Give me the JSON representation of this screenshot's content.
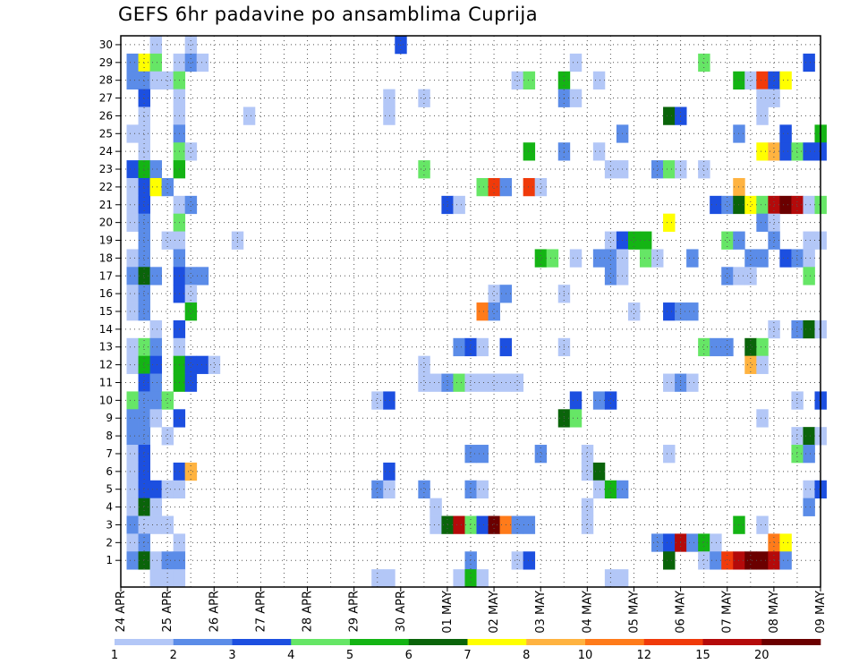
{
  "chart_data": {
    "type": "heatmap",
    "title": "GEFS 6hr padavine po ansamblima Cuprija",
    "xlabel": "",
    "ylabel": "",
    "y_members": [
      1,
      2,
      3,
      4,
      5,
      6,
      7,
      8,
      9,
      10,
      11,
      12,
      13,
      14,
      15,
      16,
      17,
      18,
      19,
      20,
      21,
      22,
      23,
      24,
      25,
      26,
      27,
      28,
      29,
      30
    ],
    "x_tick_labels": [
      "24 APR",
      "25 APR",
      "26 APR",
      "27 APR",
      "28 APR",
      "29 APR",
      "30 APR",
      "01 MAY",
      "02 MAY",
      "03 MAY",
      "04 MAY",
      "05 MAY",
      "06 MAY",
      "07 MAY",
      "08 MAY",
      "09 MAY"
    ],
    "time_steps": 61,
    "steps_per_day": 4,
    "grid": true,
    "colorbar": {
      "position": "bottom",
      "tick_labels": [
        "1",
        "2",
        "3",
        "4",
        "5",
        "6",
        "7",
        "8",
        "10",
        "12",
        "15",
        "20"
      ],
      "bins": [
        {
          "min": 1,
          "max": 2,
          "color": "#b3c7f7"
        },
        {
          "min": 2,
          "max": 3,
          "color": "#5b8ce8"
        },
        {
          "min": 3,
          "max": 4,
          "color": "#1c4fe0"
        },
        {
          "min": 4,
          "max": 5,
          "color": "#66e666"
        },
        {
          "min": 5,
          "max": 6,
          "color": "#14b414"
        },
        {
          "min": 6,
          "max": 7,
          "color": "#0a640a"
        },
        {
          "min": 7,
          "max": 8,
          "color": "#ffff00"
        },
        {
          "min": 8,
          "max": 10,
          "color": "#ffb340"
        },
        {
          "min": 10,
          "max": 12,
          "color": "#ff7b1a"
        },
        {
          "min": 12,
          "max": 15,
          "color": "#f03a0a"
        },
        {
          "min": 15,
          "max": 20,
          "color": "#b40a0a"
        },
        {
          "min": 20,
          "max": 30,
          "color": "#6b0000"
        }
      ]
    },
    "cells_format": "[member, step_index_from_24APR00Z, bin_index]",
    "cells": [
      [
        30,
        3,
        0
      ],
      [
        30,
        6,
        0
      ],
      [
        30,
        24,
        2
      ],
      [
        29,
        1,
        1
      ],
      [
        29,
        2,
        6
      ],
      [
        29,
        3,
        3
      ],
      [
        29,
        5,
        0
      ],
      [
        29,
        6,
        1
      ],
      [
        29,
        7,
        0
      ],
      [
        29,
        39,
        0
      ],
      [
        29,
        50,
        3
      ],
      [
        29,
        59,
        2
      ],
      [
        28,
        1,
        1
      ],
      [
        28,
        2,
        1
      ],
      [
        28,
        3,
        0
      ],
      [
        28,
        4,
        0
      ],
      [
        28,
        5,
        3
      ],
      [
        28,
        34,
        0
      ],
      [
        28,
        35,
        3
      ],
      [
        28,
        38,
        4
      ],
      [
        28,
        41,
        0
      ],
      [
        28,
        53,
        4
      ],
      [
        28,
        54,
        0
      ],
      [
        28,
        55,
        9
      ],
      [
        28,
        56,
        2
      ],
      [
        28,
        57,
        6
      ],
      [
        27,
        2,
        2
      ],
      [
        27,
        5,
        0
      ],
      [
        27,
        23,
        0
      ],
      [
        27,
        26,
        0
      ],
      [
        27,
        38,
        1
      ],
      [
        27,
        39,
        0
      ],
      [
        27,
        55,
        0
      ],
      [
        27,
        56,
        0
      ],
      [
        26,
        2,
        0
      ],
      [
        26,
        5,
        0
      ],
      [
        26,
        11,
        0
      ],
      [
        26,
        23,
        0
      ],
      [
        26,
        47,
        5
      ],
      [
        26,
        48,
        2
      ],
      [
        26,
        55,
        0
      ],
      [
        25,
        1,
        0
      ],
      [
        25,
        2,
        0
      ],
      [
        25,
        5,
        1
      ],
      [
        25,
        43,
        1
      ],
      [
        25,
        53,
        1
      ],
      [
        25,
        57,
        2
      ],
      [
        25,
        60,
        4
      ],
      [
        24,
        2,
        0
      ],
      [
        24,
        5,
        3
      ],
      [
        24,
        6,
        0
      ],
      [
        24,
        35,
        4
      ],
      [
        24,
        38,
        1
      ],
      [
        24,
        41,
        0
      ],
      [
        24,
        55,
        6
      ],
      [
        24,
        56,
        7
      ],
      [
        24,
        57,
        2
      ],
      [
        24,
        58,
        3
      ],
      [
        24,
        59,
        2
      ],
      [
        24,
        60,
        2
      ],
      [
        23,
        1,
        2
      ],
      [
        23,
        2,
        4
      ],
      [
        23,
        3,
        1
      ],
      [
        23,
        5,
        4
      ],
      [
        23,
        26,
        3
      ],
      [
        23,
        42,
        0
      ],
      [
        23,
        43,
        0
      ],
      [
        23,
        46,
        1
      ],
      [
        23,
        47,
        3
      ],
      [
        23,
        48,
        0
      ],
      [
        23,
        50,
        0
      ],
      [
        22,
        1,
        0
      ],
      [
        22,
        2,
        2
      ],
      [
        22,
        3,
        6
      ],
      [
        22,
        4,
        1
      ],
      [
        22,
        31,
        3
      ],
      [
        22,
        32,
        9
      ],
      [
        22,
        33,
        1
      ],
      [
        22,
        35,
        9
      ],
      [
        22,
        36,
        0
      ],
      [
        22,
        53,
        7
      ],
      [
        21,
        1,
        0
      ],
      [
        21,
        2,
        2
      ],
      [
        21,
        5,
        0
      ],
      [
        21,
        6,
        1
      ],
      [
        21,
        28,
        2
      ],
      [
        21,
        29,
        0
      ],
      [
        21,
        51,
        2
      ],
      [
        21,
        52,
        1
      ],
      [
        21,
        53,
        5
      ],
      [
        21,
        54,
        6
      ],
      [
        21,
        55,
        3
      ],
      [
        21,
        56,
        10
      ],
      [
        21,
        57,
        11
      ],
      [
        21,
        58,
        10
      ],
      [
        21,
        59,
        0
      ],
      [
        21,
        60,
        3
      ],
      [
        20,
        1,
        0
      ],
      [
        20,
        2,
        1
      ],
      [
        20,
        5,
        3
      ],
      [
        20,
        47,
        6
      ],
      [
        20,
        55,
        1
      ],
      [
        20,
        56,
        0
      ],
      [
        19,
        2,
        1
      ],
      [
        19,
        4,
        0
      ],
      [
        19,
        5,
        0
      ],
      [
        19,
        10,
        0
      ],
      [
        19,
        42,
        0
      ],
      [
        19,
        43,
        2
      ],
      [
        19,
        44,
        4
      ],
      [
        19,
        45,
        4
      ],
      [
        19,
        52,
        3
      ],
      [
        19,
        53,
        1
      ],
      [
        19,
        56,
        1
      ],
      [
        19,
        59,
        0
      ],
      [
        19,
        60,
        0
      ],
      [
        18,
        1,
        0
      ],
      [
        18,
        2,
        1
      ],
      [
        18,
        5,
        1
      ],
      [
        18,
        36,
        4
      ],
      [
        18,
        37,
        3
      ],
      [
        18,
        39,
        0
      ],
      [
        18,
        41,
        1
      ],
      [
        18,
        42,
        1
      ],
      [
        18,
        43,
        0
      ],
      [
        18,
        45,
        3
      ],
      [
        18,
        46,
        0
      ],
      [
        18,
        49,
        1
      ],
      [
        18,
        54,
        1
      ],
      [
        18,
        55,
        1
      ],
      [
        18,
        57,
        2
      ],
      [
        18,
        58,
        1
      ],
      [
        18,
        59,
        0
      ],
      [
        17,
        1,
        1
      ],
      [
        17,
        2,
        5
      ],
      [
        17,
        3,
        1
      ],
      [
        17,
        5,
        2
      ],
      [
        17,
        6,
        1
      ],
      [
        17,
        7,
        1
      ],
      [
        17,
        42,
        1
      ],
      [
        17,
        43,
        0
      ],
      [
        17,
        52,
        1
      ],
      [
        17,
        53,
        0
      ],
      [
        17,
        54,
        0
      ],
      [
        17,
        59,
        3
      ],
      [
        16,
        1,
        0
      ],
      [
        16,
        2,
        1
      ],
      [
        16,
        5,
        2
      ],
      [
        16,
        6,
        0
      ],
      [
        16,
        32,
        0
      ],
      [
        16,
        33,
        1
      ],
      [
        16,
        38,
        0
      ],
      [
        15,
        1,
        0
      ],
      [
        15,
        2,
        1
      ],
      [
        15,
        6,
        4
      ],
      [
        15,
        31,
        8
      ],
      [
        15,
        32,
        1
      ],
      [
        15,
        44,
        0
      ],
      [
        15,
        47,
        2
      ],
      [
        15,
        48,
        1
      ],
      [
        15,
        49,
        1
      ],
      [
        14,
        3,
        0
      ],
      [
        14,
        5,
        2
      ],
      [
        14,
        56,
        0
      ],
      [
        14,
        58,
        1
      ],
      [
        14,
        59,
        5
      ],
      [
        14,
        60,
        0
      ],
      [
        13,
        1,
        0
      ],
      [
        13,
        2,
        3
      ],
      [
        13,
        3,
        1
      ],
      [
        13,
        5,
        0
      ],
      [
        13,
        29,
        1
      ],
      [
        13,
        30,
        2
      ],
      [
        13,
        31,
        0
      ],
      [
        13,
        33,
        2
      ],
      [
        13,
        38,
        0
      ],
      [
        13,
        50,
        3
      ],
      [
        13,
        51,
        1
      ],
      [
        13,
        52,
        1
      ],
      [
        13,
        54,
        5
      ],
      [
        13,
        55,
        3
      ],
      [
        12,
        1,
        0
      ],
      [
        12,
        2,
        4
      ],
      [
        12,
        3,
        2
      ],
      [
        12,
        5,
        4
      ],
      [
        12,
        6,
        2
      ],
      [
        12,
        7,
        2
      ],
      [
        12,
        8,
        0
      ],
      [
        12,
        26,
        0
      ],
      [
        12,
        54,
        7
      ],
      [
        12,
        55,
        0
      ],
      [
        11,
        2,
        2
      ],
      [
        11,
        3,
        1
      ],
      [
        11,
        5,
        4
      ],
      [
        11,
        6,
        2
      ],
      [
        11,
        26,
        0
      ],
      [
        11,
        27,
        0
      ],
      [
        11,
        28,
        1
      ],
      [
        11,
        29,
        3
      ],
      [
        11,
        30,
        0
      ],
      [
        11,
        31,
        0
      ],
      [
        11,
        32,
        0
      ],
      [
        11,
        33,
        0
      ],
      [
        11,
        34,
        0
      ],
      [
        11,
        47,
        0
      ],
      [
        11,
        48,
        1
      ],
      [
        11,
        49,
        0
      ],
      [
        10,
        1,
        3
      ],
      [
        10,
        2,
        1
      ],
      [
        10,
        3,
        1
      ],
      [
        10,
        4,
        3
      ],
      [
        10,
        22,
        0
      ],
      [
        10,
        23,
        2
      ],
      [
        10,
        39,
        2
      ],
      [
        10,
        41,
        1
      ],
      [
        10,
        42,
        2
      ],
      [
        10,
        58,
        0
      ],
      [
        10,
        60,
        2
      ],
      [
        9,
        1,
        1
      ],
      [
        9,
        2,
        1
      ],
      [
        9,
        3,
        0
      ],
      [
        9,
        5,
        2
      ],
      [
        9,
        38,
        5
      ],
      [
        9,
        39,
        3
      ],
      [
        9,
        55,
        0
      ],
      [
        8,
        1,
        1
      ],
      [
        8,
        2,
        1
      ],
      [
        8,
        4,
        0
      ],
      [
        8,
        58,
        0
      ],
      [
        8,
        59,
        5
      ],
      [
        8,
        60,
        0
      ],
      [
        7,
        1,
        0
      ],
      [
        7,
        2,
        2
      ],
      [
        7,
        30,
        1
      ],
      [
        7,
        31,
        1
      ],
      [
        7,
        36,
        1
      ],
      [
        7,
        40,
        0
      ],
      [
        7,
        47,
        0
      ],
      [
        7,
        58,
        3
      ],
      [
        7,
        59,
        1
      ],
      [
        6,
        1,
        0
      ],
      [
        6,
        2,
        2
      ],
      [
        6,
        5,
        2
      ],
      [
        6,
        6,
        7
      ],
      [
        6,
        23,
        2
      ],
      [
        6,
        40,
        0
      ],
      [
        6,
        41,
        5
      ],
      [
        5,
        1,
        0
      ],
      [
        5,
        2,
        2
      ],
      [
        5,
        3,
        2
      ],
      [
        5,
        4,
        0
      ],
      [
        5,
        5,
        0
      ],
      [
        5,
        22,
        1
      ],
      [
        5,
        23,
        0
      ],
      [
        5,
        26,
        1
      ],
      [
        5,
        30,
        1
      ],
      [
        5,
        31,
        0
      ],
      [
        5,
        41,
        0
      ],
      [
        5,
        42,
        4
      ],
      [
        5,
        43,
        1
      ],
      [
        5,
        59,
        0
      ],
      [
        5,
        60,
        2
      ],
      [
        4,
        1,
        0
      ],
      [
        4,
        2,
        5
      ],
      [
        4,
        3,
        0
      ],
      [
        4,
        27,
        0
      ],
      [
        4,
        40,
        0
      ],
      [
        4,
        59,
        1
      ],
      [
        3,
        1,
        1
      ],
      [
        3,
        2,
        0
      ],
      [
        3,
        3,
        0
      ],
      [
        3,
        4,
        0
      ],
      [
        3,
        27,
        0
      ],
      [
        3,
        28,
        5
      ],
      [
        3,
        29,
        10
      ],
      [
        3,
        30,
        3
      ],
      [
        3,
        31,
        2
      ],
      [
        3,
        32,
        11
      ],
      [
        3,
        33,
        8
      ],
      [
        3,
        34,
        1
      ],
      [
        3,
        35,
        1
      ],
      [
        3,
        40,
        0
      ],
      [
        3,
        53,
        4
      ],
      [
        3,
        55,
        0
      ],
      [
        2,
        1,
        0
      ],
      [
        2,
        2,
        1
      ],
      [
        2,
        5,
        0
      ],
      [
        2,
        46,
        1
      ],
      [
        2,
        47,
        2
      ],
      [
        2,
        48,
        10
      ],
      [
        2,
        49,
        1
      ],
      [
        2,
        50,
        4
      ],
      [
        2,
        51,
        0
      ],
      [
        2,
        56,
        8
      ],
      [
        2,
        57,
        6
      ],
      [
        1,
        1,
        1
      ],
      [
        1,
        2,
        5
      ],
      [
        1,
        3,
        0
      ],
      [
        1,
        4,
        1
      ],
      [
        1,
        5,
        1
      ],
      [
        1,
        30,
        1
      ],
      [
        1,
        34,
        0
      ],
      [
        1,
        35,
        2
      ],
      [
        1,
        47,
        5
      ],
      [
        1,
        50,
        0
      ],
      [
        1,
        51,
        1
      ],
      [
        1,
        52,
        9
      ],
      [
        1,
        53,
        10
      ],
      [
        1,
        54,
        11
      ],
      [
        1,
        55,
        11
      ],
      [
        1,
        56,
        10
      ],
      [
        1,
        57,
        1
      ],
      [
        0,
        3,
        0
      ],
      [
        0,
        4,
        0
      ],
      [
        0,
        5,
        0
      ],
      [
        0,
        22,
        0
      ],
      [
        0,
        23,
        0
      ],
      [
        0,
        29,
        0
      ],
      [
        0,
        30,
        4
      ],
      [
        0,
        31,
        0
      ],
      [
        0,
        42,
        0
      ],
      [
        0,
        43,
        0
      ]
    ]
  }
}
